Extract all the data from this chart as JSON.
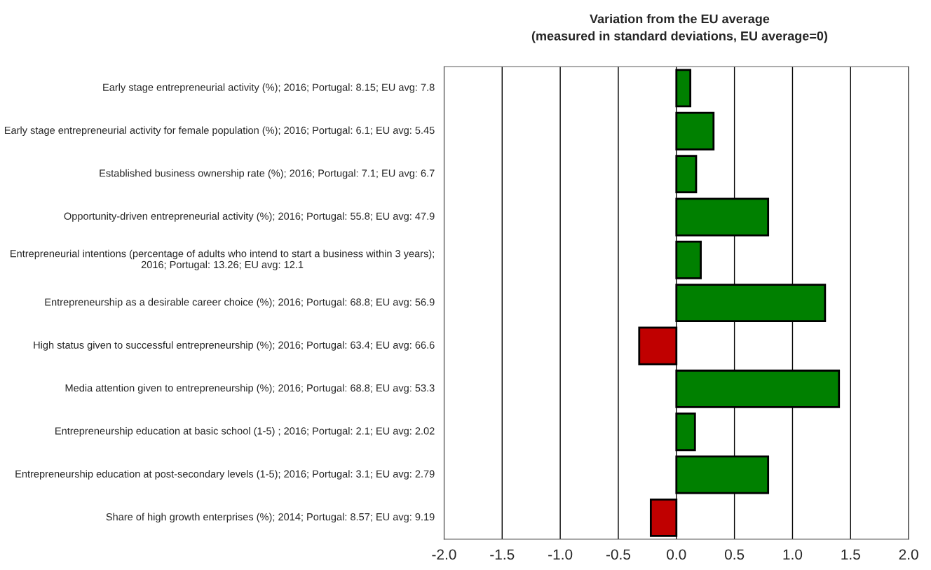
{
  "chart_data": {
    "type": "bar",
    "orientation": "horizontal",
    "title": "Variation from the EU average",
    "subtitle": "(measured in standard deviations, EU average=0)",
    "categories": [
      "Early stage entrepreneurial activity (%); 2016; Portugal: 8.15; EU avg: 7.8",
      "Early stage entrepreneurial activity for female population (%); 2016; Portugal: 6.1; EU avg: 5.45",
      "Established business ownership rate (%); 2016; Portugal: 7.1; EU avg: 6.7",
      "Opportunity-driven entrepreneurial activity (%); 2016; Portugal: 55.8; EU avg: 47.9",
      "Entrepreneurial intentions (percentage of adults who intend to start a business within 3 years); 2016; Portugal: 13.26; EU avg: 12.1",
      "Entrepreneurship as a desirable career choice (%); 2016; Portugal: 68.8; EU avg: 56.9",
      "High status given to successful entrepreneurship (%); 2016; Portugal: 63.4; EU avg: 66.6",
      "Media attention given to entrepreneurship (%); 2016; Portugal: 68.8; EU avg: 53.3",
      "Entrepreneurship education at basic school (1-5) ; 2016; Portugal: 2.1; EU avg: 2.02",
      "Entrepreneurship education at post-secondary levels (1-5); 2016; Portugal: 3.1; EU avg: 2.79",
      "Share of high growth enterprises (%); 2014; Portugal: 8.57; EU avg: 9.19"
    ],
    "values": [
      0.12,
      0.32,
      0.17,
      0.79,
      0.21,
      1.28,
      -0.32,
      1.4,
      0.16,
      0.79,
      -0.22
    ],
    "colors": [
      "#008000",
      "#008000",
      "#008000",
      "#008000",
      "#008000",
      "#008000",
      "#c00000",
      "#008000",
      "#008000",
      "#008000",
      "#c00000"
    ],
    "xlim": [
      -2.0,
      2.0
    ],
    "xticks": [
      {
        "value": -2.0,
        "label": "-2.0"
      },
      {
        "value": -1.5,
        "label": "-1.5"
      },
      {
        "value": -1.0,
        "label": "-1.0"
      },
      {
        "value": -0.5,
        "label": "-0.5"
      },
      {
        "value": 0.0,
        "label": "0.0"
      },
      {
        "value": 0.5,
        "label": "0.5"
      },
      {
        "value": 1.0,
        "label": "1.0"
      },
      {
        "value": 1.5,
        "label": "1.5"
      },
      {
        "value": 2.0,
        "label": "2.0"
      }
    ],
    "grid": "x",
    "legend": false
  }
}
